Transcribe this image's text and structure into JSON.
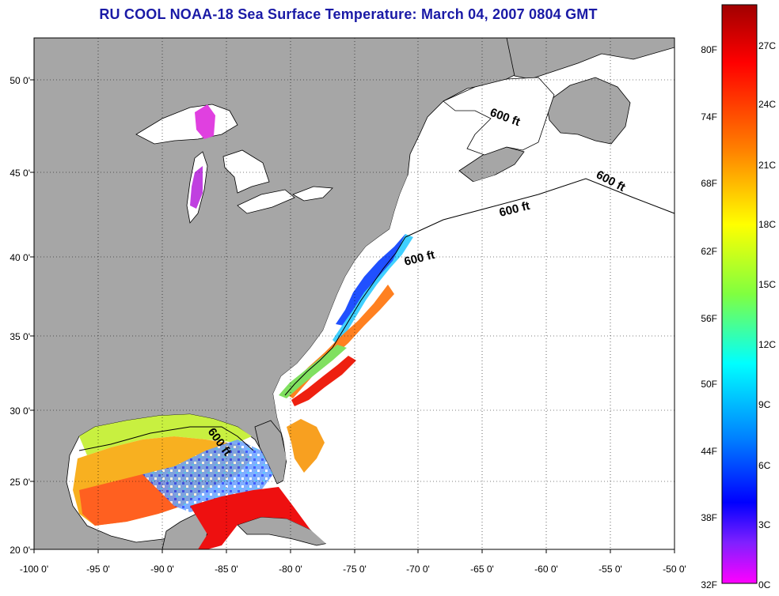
{
  "title": "RU COOL  NOAA-18  Sea Surface Temperature:  March 04, 2007 0804 GMT",
  "lon_labels": [
    "-100 0'",
    "-95 0'",
    "-90 0'",
    "-85 0'",
    "-80 0'",
    "-75 0'",
    "-70 0'",
    "-65 0'",
    "-60 0'",
    "-55 0'",
    "-50 0'"
  ],
  "lat_labels": [
    "50 0'",
    "45 0'",
    "40 0'",
    "35 0'",
    "30 0'",
    "25 0'",
    "20 0'"
  ],
  "isobath_label": "600 ft",
  "colorbar": {
    "fahrenheit": [
      "80F",
      "74F",
      "68F",
      "62F",
      "56F",
      "50F",
      "44F",
      "38F",
      "32F"
    ],
    "celsius": [
      "27C",
      "24C",
      "21C",
      "18C",
      "15C",
      "12C",
      "9C",
      "6C",
      "3C",
      "0C"
    ],
    "colors": [
      "#a00000",
      "#ff0000",
      "#ff8000",
      "#ffff00",
      "#80ff40",
      "#00ffff",
      "#0080ff",
      "#0000ff",
      "#8020ff",
      "#ff00ff"
    ]
  },
  "colors": {
    "land": "#a6a6a6",
    "title": "#1a1aa6",
    "no_data": "#ffffff"
  }
}
